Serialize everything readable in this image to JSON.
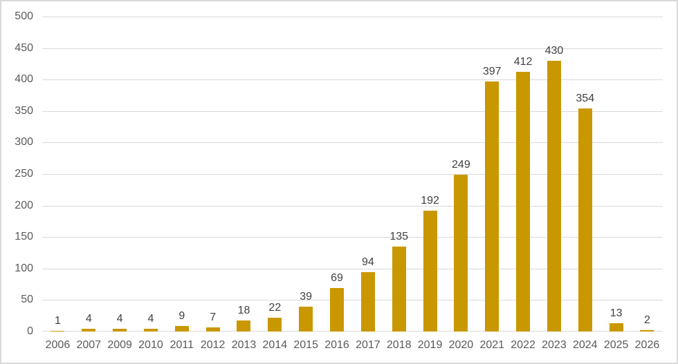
{
  "chart_data": {
    "type": "bar",
    "title": "",
    "xlabel": "",
    "ylabel": "",
    "categories": [
      "2006",
      "2007",
      "2009",
      "2010",
      "2011",
      "2012",
      "2013",
      "2014",
      "2015",
      "2016",
      "2017",
      "2018",
      "2019",
      "2020",
      "2021",
      "2022",
      "2023",
      "2024",
      "2025",
      "2026"
    ],
    "values": [
      1,
      4,
      4,
      4,
      9,
      7,
      18,
      22,
      39,
      69,
      94,
      135,
      192,
      249,
      397,
      412,
      430,
      354,
      13,
      2
    ],
    "ylim": [
      0,
      500
    ],
    "yticks": [
      0,
      50,
      100,
      150,
      200,
      250,
      300,
      350,
      400,
      450,
      500
    ],
    "grid": true,
    "legend": false,
    "data_labels_shown": true,
    "colors": {
      "bar": "#C99700",
      "gridline": "#D9D9D9",
      "axis_label": "#595959",
      "data_label": "#404040",
      "background": "#FFFFFF",
      "chart_border": "#D9D9D9"
    }
  }
}
